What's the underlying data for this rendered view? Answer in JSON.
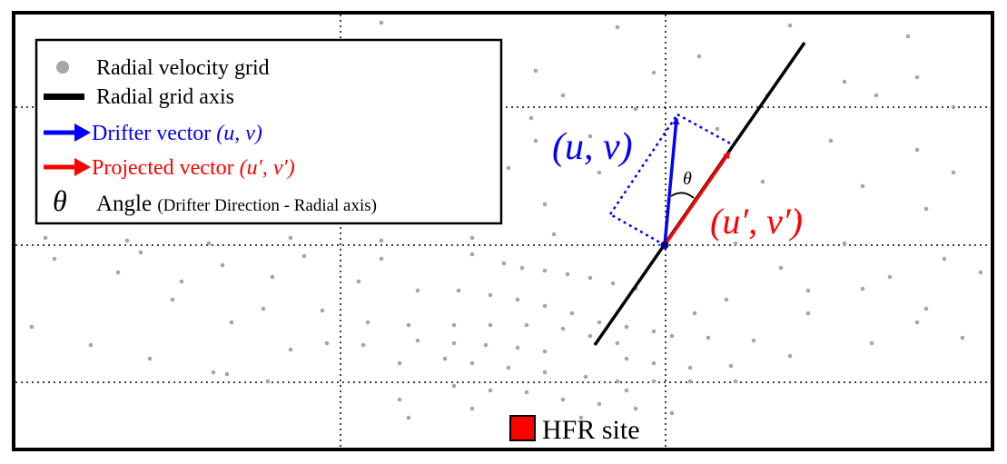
{
  "legend": {
    "grid_label": "Radial velocity grid",
    "axis_label": "Radial grid axis",
    "drifter_label": "Drifter vector ",
    "drifter_vars": "(u, v)",
    "projected_label": "Projected vector ",
    "projected_vars": "(u′, v′)",
    "theta_symbol": "θ",
    "angle_label": "Angle ",
    "angle_detail": "(Drifter Direction - Radial axis)"
  },
  "annotations": {
    "drifter": "(u, v)",
    "projected": "(u′, v′)",
    "theta": "θ"
  },
  "site": {
    "label": "HFR site"
  },
  "colors": {
    "frame": "#000000",
    "grid_point": "#a6a6a6",
    "radial_axis": "#000000",
    "drifter": "#0000ff",
    "projected": "#ff0000",
    "site_fill": "#ff0000",
    "origin": "#000080"
  }
}
